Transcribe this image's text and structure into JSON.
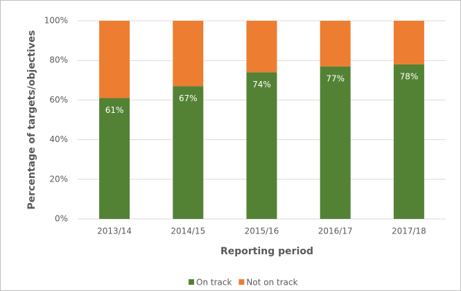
{
  "chart_data": {
    "type": "stacked_bar",
    "xlabel": "Reporting period",
    "ylabel": "Percentage of targets/objectives",
    "categories": [
      "2013/14",
      "2014/15",
      "2015/16",
      "2016/17",
      "2017/18"
    ],
    "series": [
      {
        "name": "On track",
        "color": "#548235",
        "values": [
          61,
          67,
          74,
          77,
          78
        ],
        "value_labels": [
          "61%",
          "67%",
          "74%",
          "77%",
          "78%"
        ]
      },
      {
        "name": "Not on track",
        "color": "#ed7d31",
        "values": [
          39,
          33,
          26,
          23,
          22
        ]
      }
    ],
    "ylim": [
      0,
      100
    ],
    "yticks": [
      {
        "value": 0,
        "label": "0%"
      },
      {
        "value": 20,
        "label": "20%"
      },
      {
        "value": 40,
        "label": "40%"
      },
      {
        "value": 60,
        "label": "60%"
      },
      {
        "value": 80,
        "label": "80%"
      },
      {
        "value": 100,
        "label": "100%"
      }
    ],
    "grid": true,
    "legend": "bottom"
  }
}
